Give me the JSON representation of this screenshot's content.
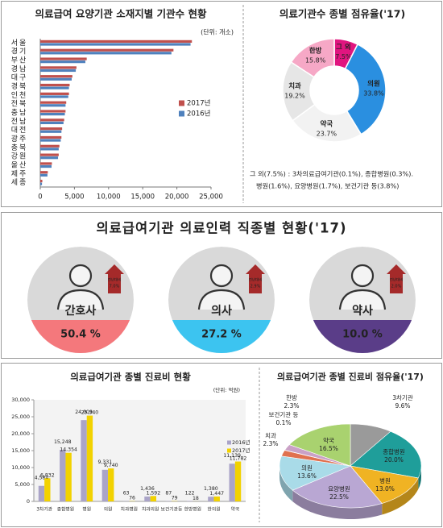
{
  "chart_data": [
    {
      "type": "bar",
      "orientation": "horizontal",
      "title": "의료급여 요양기관 소재지별 기관수 현황",
      "unit_note": "(단위: 개소)",
      "categories": [
        "서울",
        "경기",
        "부산",
        "경남",
        "대구",
        "경북",
        "인천",
        "전북",
        "충남",
        "전남",
        "대전",
        "광주",
        "충북",
        "강원",
        "울산",
        "제주",
        "세종"
      ],
      "series": [
        {
          "name": "2017년",
          "color": "#c0504d",
          "values": [
            22200,
            19500,
            6800,
            5300,
            4700,
            4300,
            4200,
            3800,
            3700,
            3500,
            3200,
            3100,
            2800,
            2700,
            1700,
            1100,
            300
          ]
        },
        {
          "name": "2016년",
          "color": "#4f81bd",
          "values": [
            22000,
            19200,
            6600,
            5200,
            4600,
            4200,
            4100,
            3700,
            3600,
            3400,
            3100,
            3000,
            2700,
            2600,
            1650,
            1050,
            250
          ]
        }
      ],
      "xlim": [
        0,
        25000
      ],
      "xticks": [
        0,
        {
          "value": 5000,
          "label": "5,000"
        },
        {
          "value": 10000,
          "label": "10,000"
        },
        {
          "value": 15000,
          "label": "15,000"
        },
        {
          "value": 20000,
          "label": "20,000"
        },
        {
          "value": 25000,
          "label": "25,000"
        }
      ]
    },
    {
      "type": "donut",
      "title": "의료기관수 종별 점유율('17)",
      "categories": [
        "그 외",
        "의원",
        "약국",
        "치과",
        "한방"
      ],
      "values": [
        7.5,
        33.8,
        23.7,
        19.2,
        15.8
      ],
      "value_labels": [
        "7.5%",
        "33.8%",
        "23.7%",
        "19.2%",
        "15.8%"
      ],
      "colors": [
        "#e0157f",
        "#2a8fe0",
        "#f2f2f2",
        "#e6e6e6",
        "#f6a8c6"
      ],
      "notes": [
        "그 외(7.5%) : 3차의료급여기관(0.1%), 종합병원(0.3%).",
        "병원(1.6%), 요양병원(1.7%), 보건기관 등(3.8%)"
      ]
    },
    {
      "type": "bar",
      "orientation": "vertical",
      "title": "의료급여기관 종별 진료비 현황",
      "unit_note": "(단위: 억원)",
      "categories": [
        "3차기관",
        "종합병원",
        "병원",
        "의원",
        "치과병원",
        "치과의원",
        "보건기관등",
        "한방병원",
        "한의원",
        "약국"
      ],
      "series": [
        {
          "name": "2016년",
          "color": "#aaa4c8",
          "values": [
            4584,
            15248,
            24009,
            9331,
            63,
            1436,
            87,
            122,
            1380,
            11139
          ],
          "value_labels": [
            "4,584",
            "15,248",
            "24,009",
            "9,331",
            "63",
            "1,436",
            "87",
            "122",
            "1,380",
            "11,139"
          ]
        },
        {
          "name": "2017년",
          "color": "#f2d200",
          "values": [
            6832,
            14354,
            25340,
            9740,
            76,
            1592,
            79,
            18,
            1447,
            11782
          ],
          "value_labels": [
            "6,832",
            "14,354",
            "25,340",
            "9,740",
            "76",
            "1,592",
            "79",
            "18",
            "1,447",
            "11,782"
          ]
        }
      ],
      "ylim": [
        0,
        30000
      ],
      "yticks": [
        0,
        {
          "value": 5000,
          "label": "5,000"
        },
        {
          "value": 10000,
          "label": "10,000"
        },
        {
          "value": 15000,
          "label": "15,000"
        },
        {
          "value": 20000,
          "label": "20,000"
        },
        {
          "value": 25000,
          "label": "25,000"
        },
        {
          "value": 30000,
          "label": "30,000"
        }
      ]
    },
    {
      "type": "pie3d",
      "title": "의료급여기관 종별 진료비 점유율('17)",
      "categories": [
        "3차기관",
        "종합병원",
        "병원",
        "요양병원",
        "의원",
        "치과",
        "보건기관 등",
        "한방",
        "약국"
      ],
      "values": [
        9.6,
        20.0,
        13.0,
        22.5,
        13.6,
        2.3,
        0.1,
        2.3,
        16.5
      ],
      "value_labels": [
        "9.6%",
        "20.0%",
        "13.0%",
        "22.5%",
        "13.6%",
        "2.3%",
        "0.1%",
        "2.3%",
        "16.5%"
      ],
      "colors": [
        "#9a9a9a",
        "#1f9e9a",
        "#f0b323",
        "#b9a7d3",
        "#a9dbe8",
        "#e0714f",
        "#d7a57e",
        "#caa1c6",
        "#a9d26f"
      ]
    }
  ],
  "staffing": {
    "title": "의료급여기관 의료인력 직종별 현황('17)",
    "items": [
      {
        "job": "간호사",
        "share": "50.4 %",
        "change_label": "전년대비",
        "change": "7.0%",
        "color": "#f4787c"
      },
      {
        "job": "의사",
        "share": "27.2 %",
        "change_label": "전년대비",
        "change": "2.9%",
        "color": "#3cc4f0"
      },
      {
        "job": "약사",
        "share": "10.0 %",
        "change_label": "전년대비",
        "change": "2.0%",
        "color": "#5a3d88"
      }
    ]
  }
}
